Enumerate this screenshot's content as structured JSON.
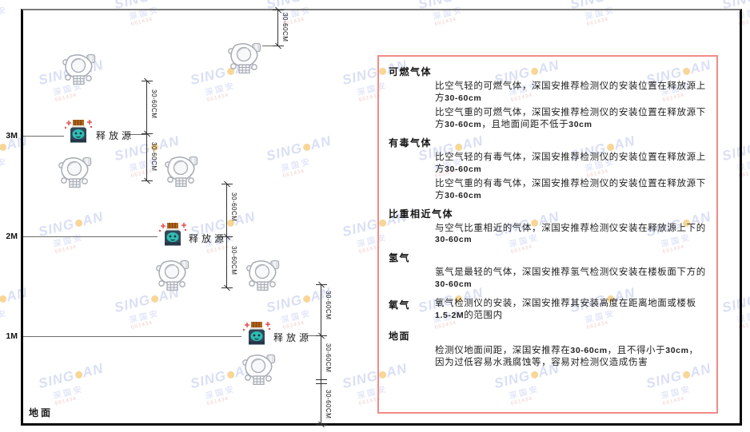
{
  "watermark": {
    "brand_left": "SING",
    "brand_right": "AN",
    "brand_sub": "深国安",
    "brand_code": "661434"
  },
  "diagram": {
    "heights": [
      {
        "label": "3M"
      },
      {
        "label": "2M"
      },
      {
        "label": "1M"
      }
    ],
    "ground_label": "地面",
    "release_source_label": "释放源",
    "dim_label": "30-60CM"
  },
  "panel": {
    "sections": [
      {
        "heading": "可燃气体",
        "paragraphs": [
          "比空气轻的可燃气体，深国安推荐检测仪的安装位置在释放源上方30-60cm",
          "比空气重的可燃气体，深国安推荐检测仪的安装位置在释放源下方30-60cm，且地面间距不低于30cm"
        ]
      },
      {
        "heading": "有毒气体",
        "paragraphs": [
          "比空气轻的有毒气体，深国安推荐检测仪的安装位置在释放源上方30-60cm",
          "比空气重的有毒气体，深国安推荐检测仪的安装位置在释放源下方30-60cm"
        ]
      },
      {
        "heading": "比重相近气体",
        "paragraphs": [
          "与空气比重相近的气体，深国安推荐检测仪安装在释放源上下的30-60cm"
        ]
      },
      {
        "heading": "氢气",
        "paragraphs": [
          "氢气是最轻的气体，深国安推荐氢气检测仪安装在楼板面下方的30-60cm"
        ]
      },
      {
        "heading": "氧气",
        "inline": true,
        "paragraphs": [
          "氧气检测仪的安装，深国安推荐其安装高度在距离地面或楼板1.5-2M的范围内"
        ]
      },
      {
        "heading": "地面",
        "paragraphs": [
          "检测仪地面间距，深国安推荐在30-60cm，且不得小于30cm，因为过低容易水溅腐蚀等，容易对检测仪造成伤害"
        ]
      }
    ]
  },
  "colors": {
    "panel_border": "#f28a85",
    "watermark_blue": "#bcc6ee",
    "watermark_dot_orange": "#f2b544",
    "detector_stroke": "#a6abb3",
    "source_body": "#31475a",
    "source_face": "#2fbdb3",
    "source_cap": "#b5651d",
    "spark_red": "#e05252"
  }
}
